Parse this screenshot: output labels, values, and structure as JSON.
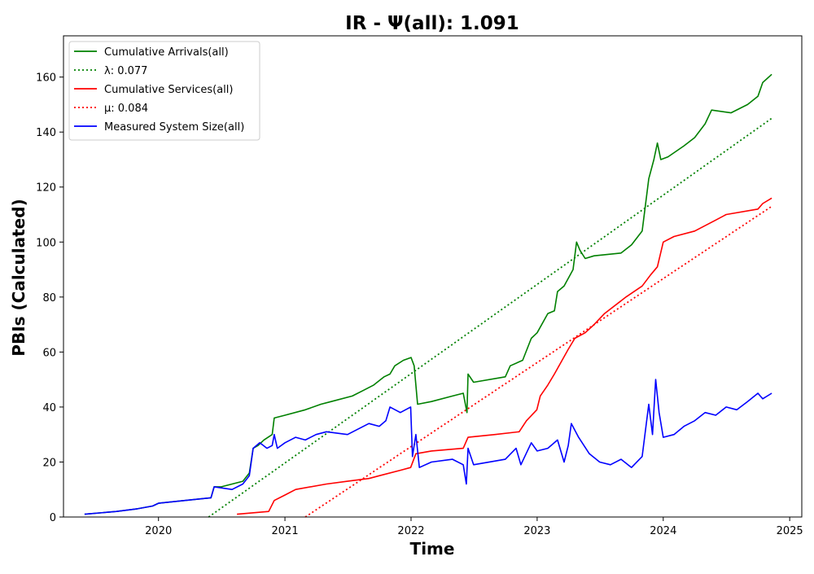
{
  "chart_data": {
    "type": "line",
    "title": "IR -  Ψ(all): 1.091",
    "xlabel": "Time",
    "ylabel": "PBIs (Calculated)",
    "xlim": [
      "2019-04-01",
      "2025-02-05"
    ],
    "ylim": [
      0,
      175
    ],
    "x_ticks": [
      "2020",
      "2021",
      "2022",
      "2023",
      "2024",
      "2025"
    ],
    "y_ticks": [
      0,
      20,
      40,
      60,
      80,
      100,
      120,
      140,
      160
    ],
    "grid": false,
    "legend_position": "top-left",
    "series": [
      {
        "name": "Cumulative Arrivals(all)",
        "color": "#008000",
        "style": "solid",
        "points": [
          [
            "2019-06-01",
            1
          ],
          [
            "2019-09-01",
            2
          ],
          [
            "2019-11-01",
            3
          ],
          [
            "2019-12-15",
            4
          ],
          [
            "2020-01-01",
            5
          ],
          [
            "2020-06-01",
            7
          ],
          [
            "2020-06-10",
            11
          ],
          [
            "2020-07-01",
            11
          ],
          [
            "2020-08-01",
            12
          ],
          [
            "2020-09-01",
            13
          ],
          [
            "2020-09-20",
            16
          ],
          [
            "2020-10-01",
            25
          ],
          [
            "2020-10-15",
            26
          ],
          [
            "2020-11-01",
            28
          ],
          [
            "2020-11-25",
            30
          ],
          [
            "2020-12-01",
            36
          ],
          [
            "2021-01-01",
            37
          ],
          [
            "2021-03-01",
            39
          ],
          [
            "2021-04-15",
            41
          ],
          [
            "2021-05-15",
            42
          ],
          [
            "2021-07-15",
            44
          ],
          [
            "2021-08-15",
            46
          ],
          [
            "2021-09-15",
            48
          ],
          [
            "2021-10-15",
            51
          ],
          [
            "2021-11-01",
            52
          ],
          [
            "2021-11-15",
            55
          ],
          [
            "2021-12-10",
            57
          ],
          [
            "2022-01-01",
            58
          ],
          [
            "2022-01-10",
            55
          ],
          [
            "2022-01-20",
            41
          ],
          [
            "2022-03-01",
            42
          ],
          [
            "2022-05-01",
            44
          ],
          [
            "2022-06-01",
            45
          ],
          [
            "2022-06-12",
            38
          ],
          [
            "2022-06-15",
            52
          ],
          [
            "2022-07-01",
            49
          ],
          [
            "2022-10-01",
            51
          ],
          [
            "2022-10-15",
            55
          ],
          [
            "2022-11-20",
            57
          ],
          [
            "2022-12-15",
            65
          ],
          [
            "2023-01-01",
            67
          ],
          [
            "2023-02-01",
            74
          ],
          [
            "2023-02-20",
            75
          ],
          [
            "2023-03-01",
            82
          ],
          [
            "2023-03-20",
            84
          ],
          [
            "2023-04-15",
            90
          ],
          [
            "2023-04-25",
            100
          ],
          [
            "2023-05-05",
            97
          ],
          [
            "2023-05-20",
            94
          ],
          [
            "2023-06-15",
            95
          ],
          [
            "2023-09-01",
            96
          ],
          [
            "2023-10-01",
            99
          ],
          [
            "2023-11-01",
            104
          ],
          [
            "2023-11-20",
            123
          ],
          [
            "2023-12-05",
            130
          ],
          [
            "2023-12-15",
            136
          ],
          [
            "2023-12-25",
            130
          ],
          [
            "2024-01-15",
            131
          ],
          [
            "2024-03-01",
            135
          ],
          [
            "2024-04-01",
            138
          ],
          [
            "2024-05-01",
            143
          ],
          [
            "2024-05-20",
            148
          ],
          [
            "2024-07-15",
            147
          ],
          [
            "2024-09-01",
            150
          ],
          [
            "2024-10-01",
            153
          ],
          [
            "2024-10-15",
            158
          ],
          [
            "2024-11-10",
            161
          ]
        ]
      },
      {
        "name": "λ: 0.077",
        "color": "#008000",
        "style": "dotted",
        "points": [
          [
            "2020-05-25",
            0
          ],
          [
            "2024-11-10",
            145
          ]
        ]
      },
      {
        "name": "Cumulative Services(all)",
        "color": "#ff0000",
        "style": "solid",
        "points": [
          [
            "2020-08-15",
            1
          ],
          [
            "2020-11-15",
            2
          ],
          [
            "2020-12-01",
            6
          ],
          [
            "2021-01-01",
            8
          ],
          [
            "2021-02-01",
            10
          ],
          [
            "2021-05-01",
            12
          ],
          [
            "2021-07-01",
            13
          ],
          [
            "2021-09-01",
            14
          ],
          [
            "2021-10-01",
            15
          ],
          [
            "2021-12-01",
            17
          ],
          [
            "2021-12-31",
            18
          ],
          [
            "2022-01-15",
            23
          ],
          [
            "2022-03-01",
            24
          ],
          [
            "2022-06-01",
            25
          ],
          [
            "2022-06-15",
            29
          ],
          [
            "2022-09-01",
            30
          ],
          [
            "2022-11-10",
            31
          ],
          [
            "2022-12-01",
            35
          ],
          [
            "2022-12-31",
            39
          ],
          [
            "2023-01-10",
            44
          ],
          [
            "2023-02-01",
            48
          ],
          [
            "2023-02-20",
            52
          ],
          [
            "2023-04-01",
            61
          ],
          [
            "2023-04-20",
            65
          ],
          [
            "2023-05-20",
            67
          ],
          [
            "2023-06-15",
            70
          ],
          [
            "2023-07-15",
            74
          ],
          [
            "2023-09-15",
            80
          ],
          [
            "2023-11-01",
            84
          ],
          [
            "2023-11-25",
            88
          ],
          [
            "2023-12-15",
            91
          ],
          [
            "2024-01-01",
            100
          ],
          [
            "2024-02-01",
            102
          ],
          [
            "2024-04-01",
            104
          ],
          [
            "2024-06-01",
            108
          ],
          [
            "2024-07-01",
            110
          ],
          [
            "2024-10-01",
            112
          ],
          [
            "2024-10-15",
            114
          ],
          [
            "2024-11-10",
            116
          ]
        ]
      },
      {
        "name": "μ: 0.084",
        "color": "#ff0000",
        "style": "dotted",
        "points": [
          [
            "2021-03-01",
            0
          ],
          [
            "2024-11-10",
            113
          ]
        ]
      },
      {
        "name": "Measured System Size(all)",
        "color": "#0000ff",
        "style": "solid",
        "points": [
          [
            "2019-06-01",
            1
          ],
          [
            "2019-09-01",
            2
          ],
          [
            "2019-11-01",
            3
          ],
          [
            "2019-12-15",
            4
          ],
          [
            "2020-01-01",
            5
          ],
          [
            "2020-06-01",
            7
          ],
          [
            "2020-06-10",
            11
          ],
          [
            "2020-08-01",
            10
          ],
          [
            "2020-09-01",
            12
          ],
          [
            "2020-09-20",
            15
          ],
          [
            "2020-10-01",
            25
          ],
          [
            "2020-10-20",
            27
          ],
          [
            "2020-11-10",
            25
          ],
          [
            "2020-11-25",
            26
          ],
          [
            "2020-12-01",
            30
          ],
          [
            "2020-12-10",
            25
          ],
          [
            "2021-01-01",
            27
          ],
          [
            "2021-02-01",
            29
          ],
          [
            "2021-03-01",
            28
          ],
          [
            "2021-04-01",
            30
          ],
          [
            "2021-05-01",
            31
          ],
          [
            "2021-07-01",
            30
          ],
          [
            "2021-08-01",
            32
          ],
          [
            "2021-09-01",
            34
          ],
          [
            "2021-10-01",
            33
          ],
          [
            "2021-10-20",
            35
          ],
          [
            "2021-11-01",
            40
          ],
          [
            "2021-12-01",
            38
          ],
          [
            "2021-12-31",
            40
          ],
          [
            "2022-01-05",
            22
          ],
          [
            "2022-01-15",
            30
          ],
          [
            "2022-01-25",
            18
          ],
          [
            "2022-03-01",
            20
          ],
          [
            "2022-05-01",
            21
          ],
          [
            "2022-06-01",
            19
          ],
          [
            "2022-06-10",
            12
          ],
          [
            "2022-06-15",
            25
          ],
          [
            "2022-07-01",
            19
          ],
          [
            "2022-10-01",
            21
          ],
          [
            "2022-11-01",
            25
          ],
          [
            "2022-11-15",
            19
          ],
          [
            "2022-12-15",
            27
          ],
          [
            "2023-01-01",
            24
          ],
          [
            "2023-02-01",
            25
          ],
          [
            "2023-03-01",
            28
          ],
          [
            "2023-03-20",
            20
          ],
          [
            "2023-04-01",
            26
          ],
          [
            "2023-04-10",
            34
          ],
          [
            "2023-05-01",
            29
          ],
          [
            "2023-06-01",
            23
          ],
          [
            "2023-07-01",
            20
          ],
          [
            "2023-08-01",
            19
          ],
          [
            "2023-09-01",
            21
          ],
          [
            "2023-10-01",
            18
          ],
          [
            "2023-11-01",
            22
          ],
          [
            "2023-11-20",
            41
          ],
          [
            "2023-12-01",
            30
          ],
          [
            "2023-12-10",
            50
          ],
          [
            "2023-12-20",
            38
          ],
          [
            "2024-01-01",
            29
          ],
          [
            "2024-02-01",
            30
          ],
          [
            "2024-03-01",
            33
          ],
          [
            "2024-04-01",
            35
          ],
          [
            "2024-05-01",
            38
          ],
          [
            "2024-06-01",
            37
          ],
          [
            "2024-07-01",
            40
          ],
          [
            "2024-08-01",
            39
          ],
          [
            "2024-09-01",
            42
          ],
          [
            "2024-10-01",
            45
          ],
          [
            "2024-10-15",
            43
          ],
          [
            "2024-11-10",
            45
          ]
        ]
      }
    ]
  }
}
